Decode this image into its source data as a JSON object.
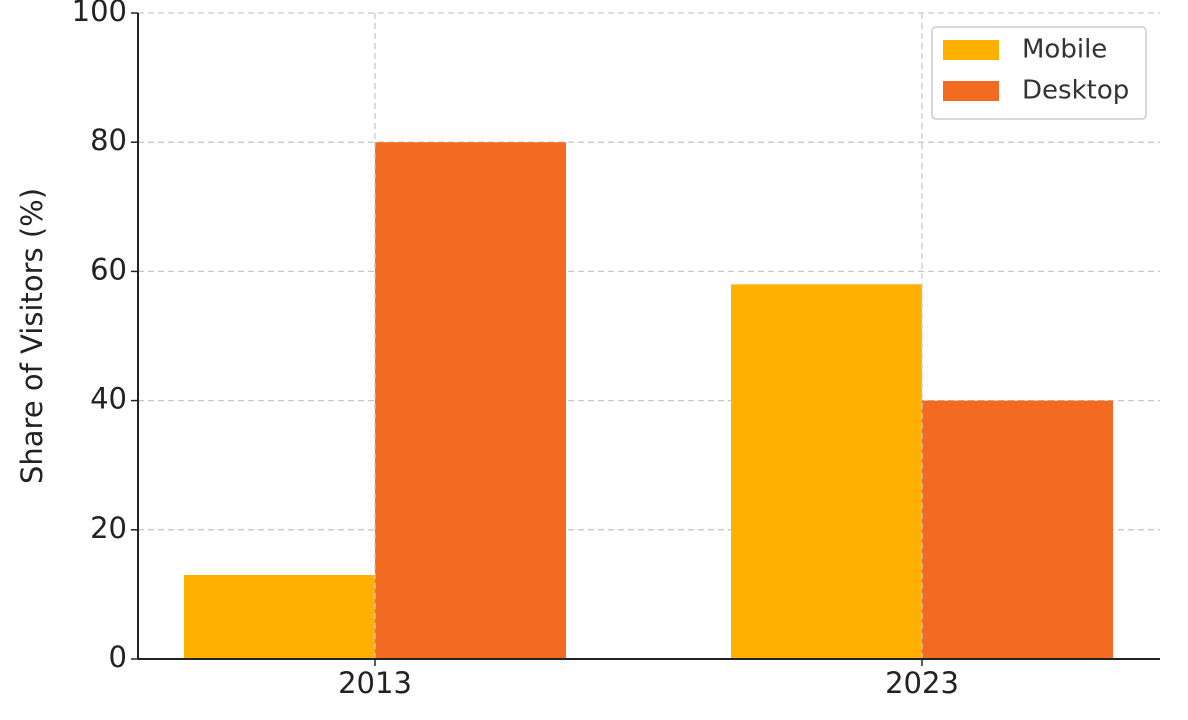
{
  "chart_data": {
    "type": "bar",
    "y_label": "Share of Visitors (%)",
    "categories": [
      "2013",
      "2023"
    ],
    "series": [
      {
        "name": "Mobile",
        "color": "#ffb000",
        "values": [
          13,
          58
        ]
      },
      {
        "name": "Desktop",
        "color": "#f26b21",
        "values": [
          80,
          40
        ]
      }
    ],
    "ylim": [
      0,
      100
    ],
    "yticks": [
      0,
      20,
      40,
      60,
      80,
      100
    ],
    "grid": true,
    "legend": "upper right"
  }
}
